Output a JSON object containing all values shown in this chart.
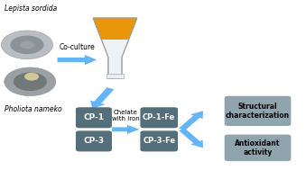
{
  "bg_color": "#ffffff",
  "lepista_label": "Lepista sordida",
  "pholiota_label": "Pholiota nameko",
  "coculture_label": "Co-culture",
  "chelate_label": "Chelate\nwith iron",
  "box_color_dark": "#546e7a",
  "box_color_light": "#90a4ae",
  "arrow_color": "#64b5f6",
  "circle1_color": "#a8b0b8",
  "circle1_inner": "#7a8888",
  "circle2_color": "#8a9898",
  "circle2_inner": "#c8c0a0"
}
